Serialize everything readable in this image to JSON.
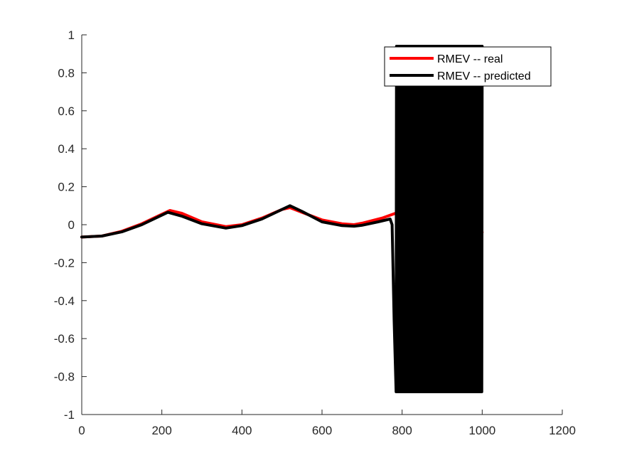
{
  "chart_data": {
    "type": "line",
    "title": "",
    "xlabel": "",
    "ylabel": "",
    "xlim": [
      0,
      1200
    ],
    "ylim": [
      -1,
      1
    ],
    "xticks": [
      0,
      200,
      400,
      600,
      800,
      1000,
      1200
    ],
    "yticks": [
      -1,
      -0.8,
      -0.6,
      -0.4,
      -0.2,
      0,
      0.2,
      0.4,
      0.6,
      0.8,
      1
    ],
    "xtick_labels": [
      "0",
      "200",
      "400",
      "600",
      "800",
      "1000",
      "1200"
    ],
    "ytick_labels": [
      "-1",
      "-0.8",
      "-0.6",
      "-0.4",
      "-0.2",
      "0",
      "0.2",
      "0.4",
      "0.6",
      "0.8",
      "1"
    ],
    "grid": false,
    "legend_position": "top-right",
    "series": [
      {
        "name": "RMEV -- real",
        "color": "#ff0000",
        "x": [
          0,
          50,
          100,
          150,
          200,
          220,
          250,
          300,
          360,
          400,
          450,
          500,
          520,
          550,
          600,
          650,
          680,
          700,
          750,
          790,
          800,
          850,
          900,
          950,
          1000
        ],
        "y": [
          -0.065,
          -0.06,
          -0.035,
          0.005,
          0.055,
          0.075,
          0.06,
          0.015,
          -0.01,
          0.0,
          0.035,
          0.08,
          0.09,
          0.065,
          0.025,
          0.005,
          0.0,
          0.008,
          0.035,
          0.065,
          0.06,
          0.03,
          0.005,
          -0.02,
          -0.04
        ]
      },
      {
        "name": "RMEV -- predicted",
        "color": "#000000",
        "x": [
          0,
          50,
          100,
          150,
          200,
          215,
          250,
          300,
          360,
          400,
          450,
          500,
          520,
          550,
          600,
          650,
          680,
          700,
          740,
          770,
          775,
          780,
          785
        ],
        "y": [
          -0.065,
          -0.06,
          -0.038,
          0.0,
          0.05,
          0.065,
          0.045,
          0.005,
          -0.018,
          -0.005,
          0.03,
          0.08,
          0.1,
          0.07,
          0.015,
          -0.005,
          -0.008,
          -0.003,
          0.015,
          0.03,
          0.0,
          -0.5,
          -0.88
        ],
        "oscillation": {
          "x_start": 785,
          "x_end": 1000,
          "y_min": -0.88,
          "y_max": 0.94
        }
      }
    ]
  }
}
